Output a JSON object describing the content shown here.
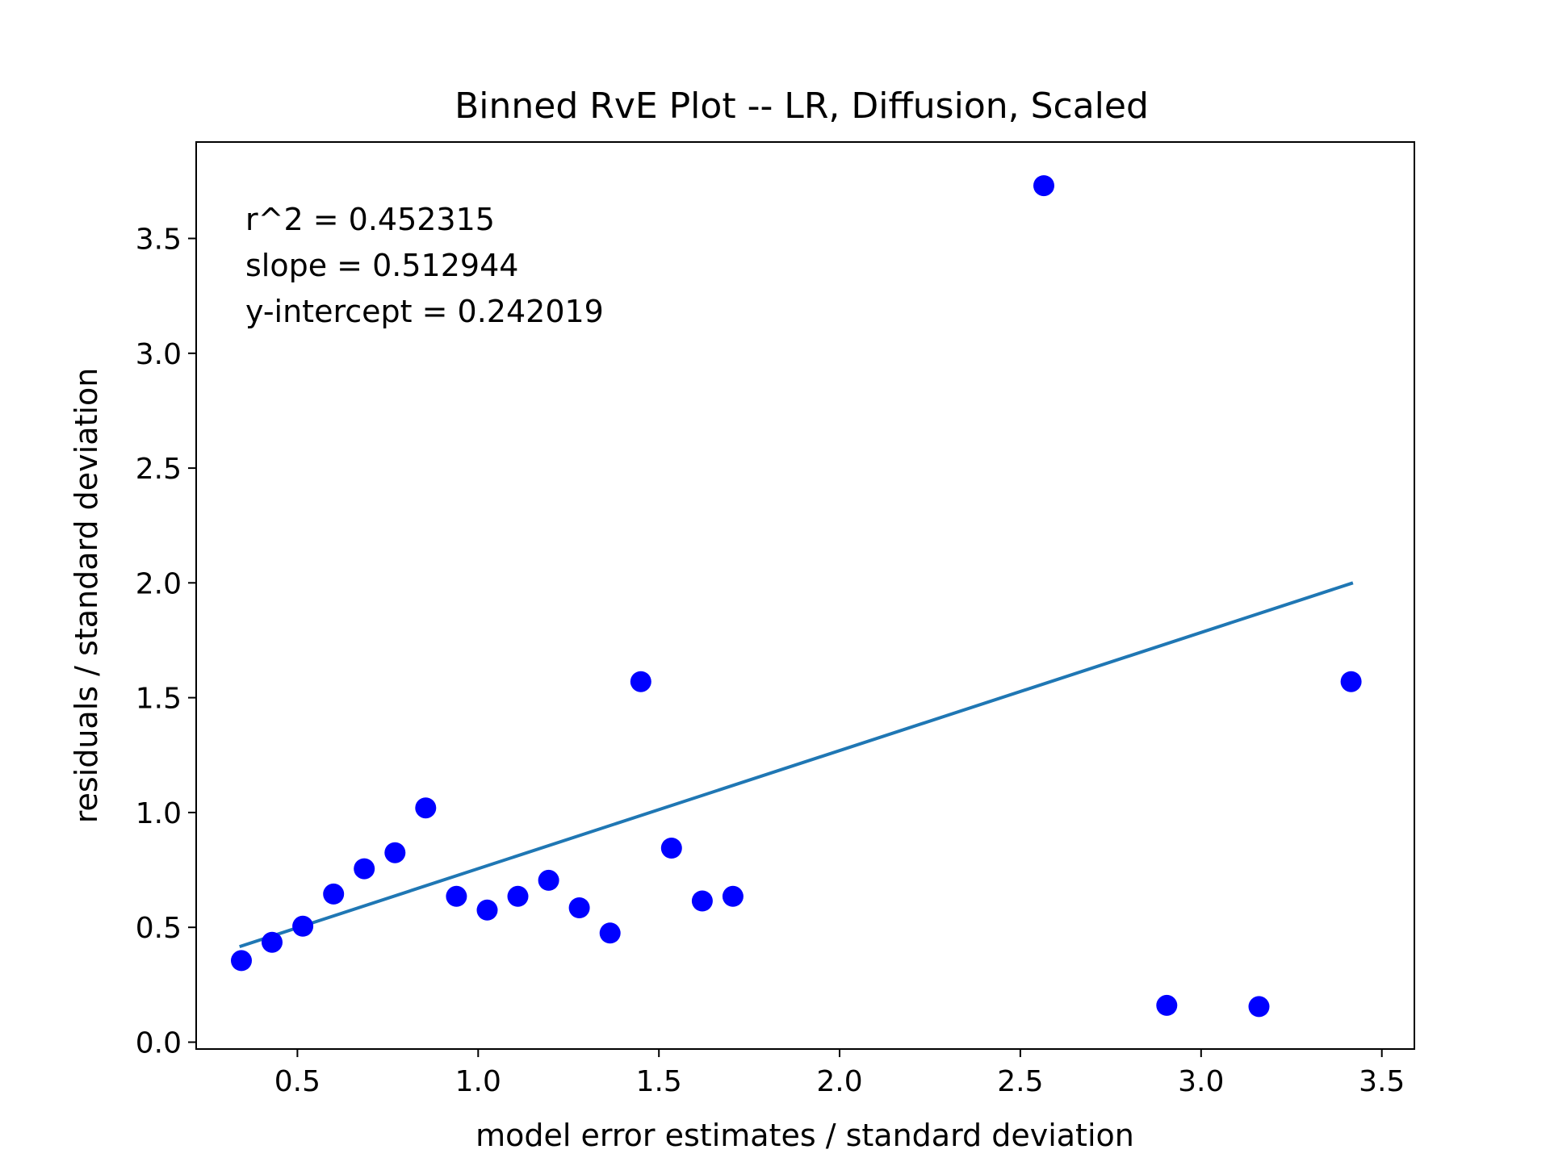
{
  "chart_data": {
    "type": "scatter",
    "title": "Binned RvE Plot -- LR, Diffusion, Scaled",
    "xlabel": "model error estimates / standard deviation",
    "ylabel": "residuals / standard deviation",
    "xlim": [
      0.22,
      3.59
    ],
    "ylim": [
      -0.03,
      3.92
    ],
    "xticks": [
      0.5,
      1.0,
      1.5,
      2.0,
      2.5,
      3.0,
      3.5
    ],
    "xtick_labels": [
      "0.5",
      "1.0",
      "1.5",
      "2.0",
      "2.5",
      "3.0",
      "3.5"
    ],
    "yticks": [
      0.0,
      0.5,
      1.0,
      1.5,
      2.0,
      2.5,
      3.0,
      3.5
    ],
    "ytick_labels": [
      "0.0",
      "0.5",
      "1.0",
      "1.5",
      "2.0",
      "2.5",
      "3.0",
      "3.5"
    ],
    "grid": false,
    "point_color": "#0000ff",
    "line_color": "#1f77b4",
    "points": {
      "x": [
        0.345,
        0.43,
        0.515,
        0.6,
        0.685,
        0.77,
        0.855,
        0.94,
        1.025,
        1.11,
        1.195,
        1.28,
        1.365,
        1.45,
        1.535,
        1.62,
        1.705,
        2.565,
        2.905,
        3.16,
        3.415
      ],
      "y": [
        0.355,
        0.435,
        0.505,
        0.645,
        0.755,
        0.825,
        1.02,
        0.635,
        0.575,
        0.635,
        0.705,
        0.585,
        0.475,
        1.57,
        0.845,
        0.615,
        0.635,
        3.73,
        0.16,
        0.155,
        1.57
      ]
    },
    "fit_line": {
      "x": [
        0.34,
        3.42
      ],
      "y": [
        0.416,
        2.0
      ]
    },
    "annotations": [
      "r^2 = 0.452315",
      "slope = 0.512944",
      "y-intercept = 0.242019"
    ]
  }
}
